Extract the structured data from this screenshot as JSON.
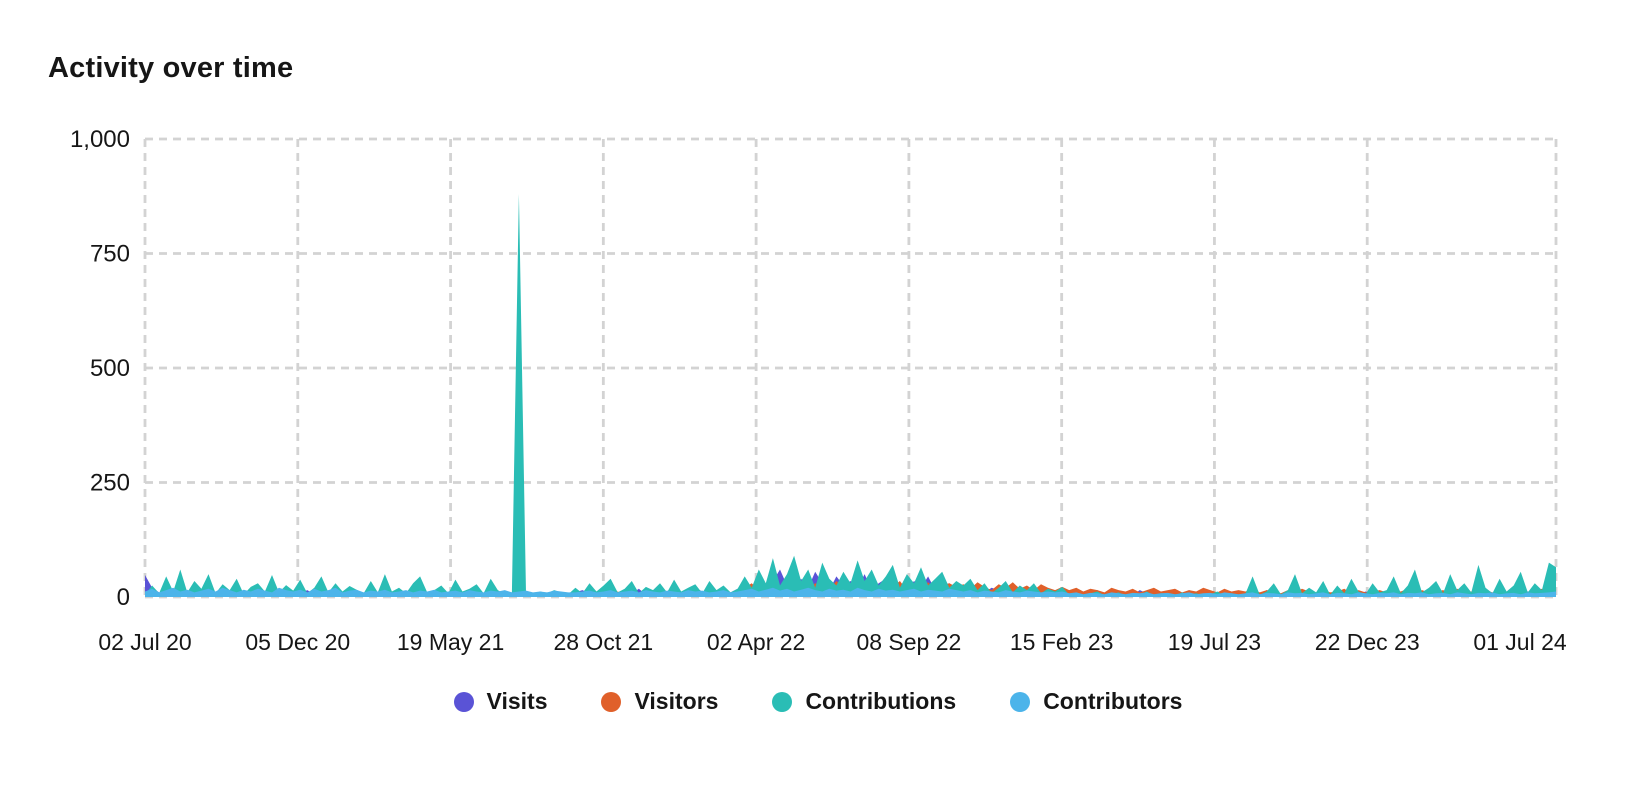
{
  "title": "Activity over time",
  "colors": {
    "background": "#ffffff",
    "grid": "#d3d3d3",
    "text": "#161616"
  },
  "chart_data": {
    "type": "area",
    "title": "Activity over time",
    "xlabel": "",
    "ylabel": "",
    "ylim": [
      0,
      1000
    ],
    "grid": "dashed",
    "legend_position": "bottom",
    "y_ticks": [
      {
        "value": 1000,
        "label": "1,000"
      },
      {
        "value": 750,
        "label": "750"
      },
      {
        "value": 500,
        "label": "500"
      },
      {
        "value": 250,
        "label": "250"
      },
      {
        "value": 0,
        "label": "0"
      }
    ],
    "x_ticks": [
      "02 Jul 20",
      "05 Dec 20",
      "19 May 21",
      "28 Oct 21",
      "02 Apr 22",
      "08 Sep 22",
      "15 Feb 23",
      "19 Jul 23",
      "22 Dec 23",
      "01 Jul 24"
    ],
    "series": [
      {
        "name": "Visits",
        "color": "#5a53d6",
        "values": [
          48,
          20,
          10,
          5,
          12,
          8,
          15,
          6,
          10,
          4,
          8,
          12,
          5,
          10,
          6,
          14,
          8,
          4,
          10,
          6,
          12,
          5,
          8,
          15,
          6,
          10,
          4,
          12,
          8,
          5,
          10,
          6,
          10,
          4,
          8,
          12,
          5,
          8,
          6,
          10,
          4,
          12,
          6,
          8,
          5,
          10,
          6,
          4,
          8,
          12,
          5,
          8,
          10,
          4,
          6,
          8,
          5,
          10,
          6,
          8,
          4,
          10,
          15,
          8,
          12,
          20,
          6,
          10,
          14,
          8,
          18,
          5,
          12,
          25,
          8,
          15,
          10,
          6,
          20,
          12,
          8,
          15,
          5,
          10,
          18,
          30,
          15,
          45,
          20,
          35,
          60,
          25,
          15,
          40,
          20,
          55,
          30,
          15,
          45,
          25,
          35,
          20,
          50,
          15,
          30,
          40,
          20,
          25,
          15,
          35,
          20,
          45,
          15,
          25,
          30,
          20,
          25,
          15,
          30,
          10,
          20,
          15,
          25,
          8,
          18,
          12,
          20,
          10,
          15,
          8,
          12,
          8,
          12,
          5,
          10,
          15,
          6,
          10,
          8,
          12,
          5,
          15,
          8,
          6,
          10,
          12,
          5,
          8,
          15,
          6,
          10,
          8,
          5,
          12,
          6,
          10,
          8,
          12,
          6,
          15,
          10,
          5,
          12,
          8,
          15,
          6,
          10,
          12,
          5,
          8,
          15,
          10,
          6,
          12,
          8,
          10,
          10,
          15,
          8,
          12,
          6,
          10,
          15,
          8,
          12,
          10,
          5,
          15,
          8,
          10,
          12,
          6,
          15,
          8,
          10,
          5,
          12,
          8,
          15,
          10,
          20
        ]
      },
      {
        "name": "Visitors",
        "color": "#e0602a",
        "values": [
          10,
          6,
          8,
          4,
          10,
          5,
          8,
          12,
          6,
          4,
          8,
          10,
          5,
          8,
          4,
          10,
          6,
          8,
          5,
          12,
          4,
          8,
          6,
          10,
          5,
          8,
          4,
          6,
          10,
          5,
          8,
          5,
          8,
          4,
          6,
          10,
          5,
          8,
          4,
          6,
          8,
          5,
          10,
          4,
          8,
          6,
          5,
          8,
          4,
          10,
          6,
          5,
          8,
          4,
          6,
          6,
          8,
          5,
          10,
          6,
          8,
          8,
          12,
          6,
          10,
          15,
          8,
          12,
          6,
          14,
          8,
          10,
          15,
          6,
          12,
          8,
          10,
          14,
          6,
          12,
          8,
          15,
          10,
          6,
          12,
          20,
          30,
          15,
          25,
          35,
          18,
          28,
          22,
          35,
          15,
          30,
          25,
          18,
          35,
          22,
          28,
          15,
          32,
          25,
          18,
          30,
          22,
          35,
          15,
          28,
          20,
          32,
          18,
          25,
          30,
          22,
          28,
          18,
          32,
          22,
          15,
          28,
          20,
          32,
          18,
          25,
          15,
          28,
          20,
          15,
          22,
          15,
          20,
          12,
          18,
          15,
          10,
          20,
          15,
          12,
          18,
          10,
          15,
          20,
          12,
          15,
          18,
          10,
          15,
          12,
          20,
          15,
          10,
          18,
          12,
          15,
          12,
          18,
          10,
          15,
          12,
          8,
          15,
          10,
          18,
          12,
          8,
          15,
          10,
          12,
          18,
          8,
          15,
          10,
          12,
          15,
          10,
          15,
          12,
          18,
          8,
          15,
          10,
          12,
          15,
          8,
          18,
          10,
          12,
          8,
          15,
          10,
          18,
          12,
          8,
          15,
          10,
          12,
          18,
          10,
          15
        ]
      },
      {
        "name": "Contributions",
        "color": "#2abdb5",
        "values": [
          5,
          25,
          8,
          45,
          12,
          60,
          10,
          35,
          18,
          50,
          8,
          28,
          15,
          40,
          6,
          22,
          30,
          12,
          48,
          10,
          26,
          14,
          38,
          8,
          20,
          45,
          10,
          30,
          12,
          24,
          16,
          8,
          35,
          10,
          50,
          12,
          20,
          8,
          30,
          45,
          10,
          15,
          25,
          8,
          38,
          12,
          18,
          28,
          8,
          40,
          15,
          6,
          10,
          880,
          8,
          5,
          12,
          8,
          15,
          10,
          6,
          20,
          8,
          30,
          12,
          25,
          40,
          10,
          18,
          35,
          8,
          22,
          15,
          30,
          10,
          38,
          12,
          20,
          28,
          8,
          35,
          15,
          25,
          10,
          18,
          45,
          20,
          60,
          30,
          85,
          25,
          50,
          90,
          35,
          60,
          20,
          75,
          40,
          25,
          55,
          30,
          80,
          35,
          60,
          25,
          45,
          70,
          20,
          50,
          30,
          65,
          25,
          40,
          55,
          20,
          35,
          25,
          40,
          15,
          30,
          8,
          20,
          35,
          10,
          25,
          15,
          30,
          8,
          18,
          12,
          22,
          5,
          10,
          3,
          8,
          12,
          4,
          6,
          10,
          3,
          8,
          5,
          12,
          4,
          8,
          6,
          3,
          10,
          5,
          8,
          4,
          6,
          12,
          3,
          8,
          5,
          8,
          45,
          5,
          12,
          30,
          6,
          15,
          50,
          8,
          20,
          10,
          35,
          5,
          25,
          8,
          40,
          12,
          6,
          30,
          10,
          15,
          45,
          8,
          25,
          60,
          10,
          20,
          35,
          8,
          50,
          15,
          30,
          10,
          70,
          20,
          8,
          40,
          12,
          25,
          55,
          10,
          30,
          15,
          75,
          65
        ]
      },
      {
        "name": "Contributors",
        "color": "#4cb4ea",
        "values": [
          12,
          18,
          10,
          15,
          20,
          12,
          16,
          10,
          14,
          18,
          12,
          20,
          15,
          10,
          16,
          12,
          18,
          14,
          10,
          20,
          15,
          12,
          16,
          10,
          18,
          12,
          15,
          20,
          10,
          14,
          16,
          10,
          14,
          12,
          16,
          10,
          12,
          15,
          10,
          14,
          12,
          16,
          10,
          12,
          14,
          10,
          15,
          12,
          10,
          14,
          12,
          15,
          10,
          12,
          14,
          10,
          12,
          10,
          14,
          12,
          10,
          10,
          12,
          14,
          10,
          12,
          15,
          10,
          12,
          14,
          10,
          15,
          12,
          10,
          14,
          12,
          10,
          15,
          12,
          14,
          10,
          12,
          15,
          10,
          12,
          15,
          18,
          12,
          16,
          20,
          14,
          18,
          12,
          16,
          20,
          15,
          12,
          18,
          14,
          16,
          12,
          20,
          15,
          12,
          18,
          14,
          16,
          12,
          15,
          18,
          12,
          16,
          14,
          12,
          18,
          15,
          12,
          15,
          10,
          14,
          12,
          10,
          15,
          12,
          10,
          14,
          12,
          10,
          12,
          10,
          12,
          8,
          10,
          6,
          9,
          8,
          6,
          10,
          8,
          6,
          9,
          8,
          10,
          6,
          8,
          9,
          6,
          8,
          10,
          6,
          8,
          9,
          6,
          10,
          8,
          6,
          8,
          10,
          6,
          9,
          8,
          6,
          10,
          8,
          9,
          6,
          8,
          10,
          6,
          9,
          8,
          6,
          10,
          8,
          6,
          9,
          8,
          10,
          6,
          9,
          8,
          10,
          6,
          8,
          9,
          6,
          10,
          8,
          6,
          9,
          8,
          10,
          6,
          8,
          9,
          6,
          10,
          8,
          9,
          10,
          12
        ]
      }
    ]
  },
  "legend": {
    "items": [
      "Visits",
      "Visitors",
      "Contributions",
      "Contributors"
    ]
  }
}
